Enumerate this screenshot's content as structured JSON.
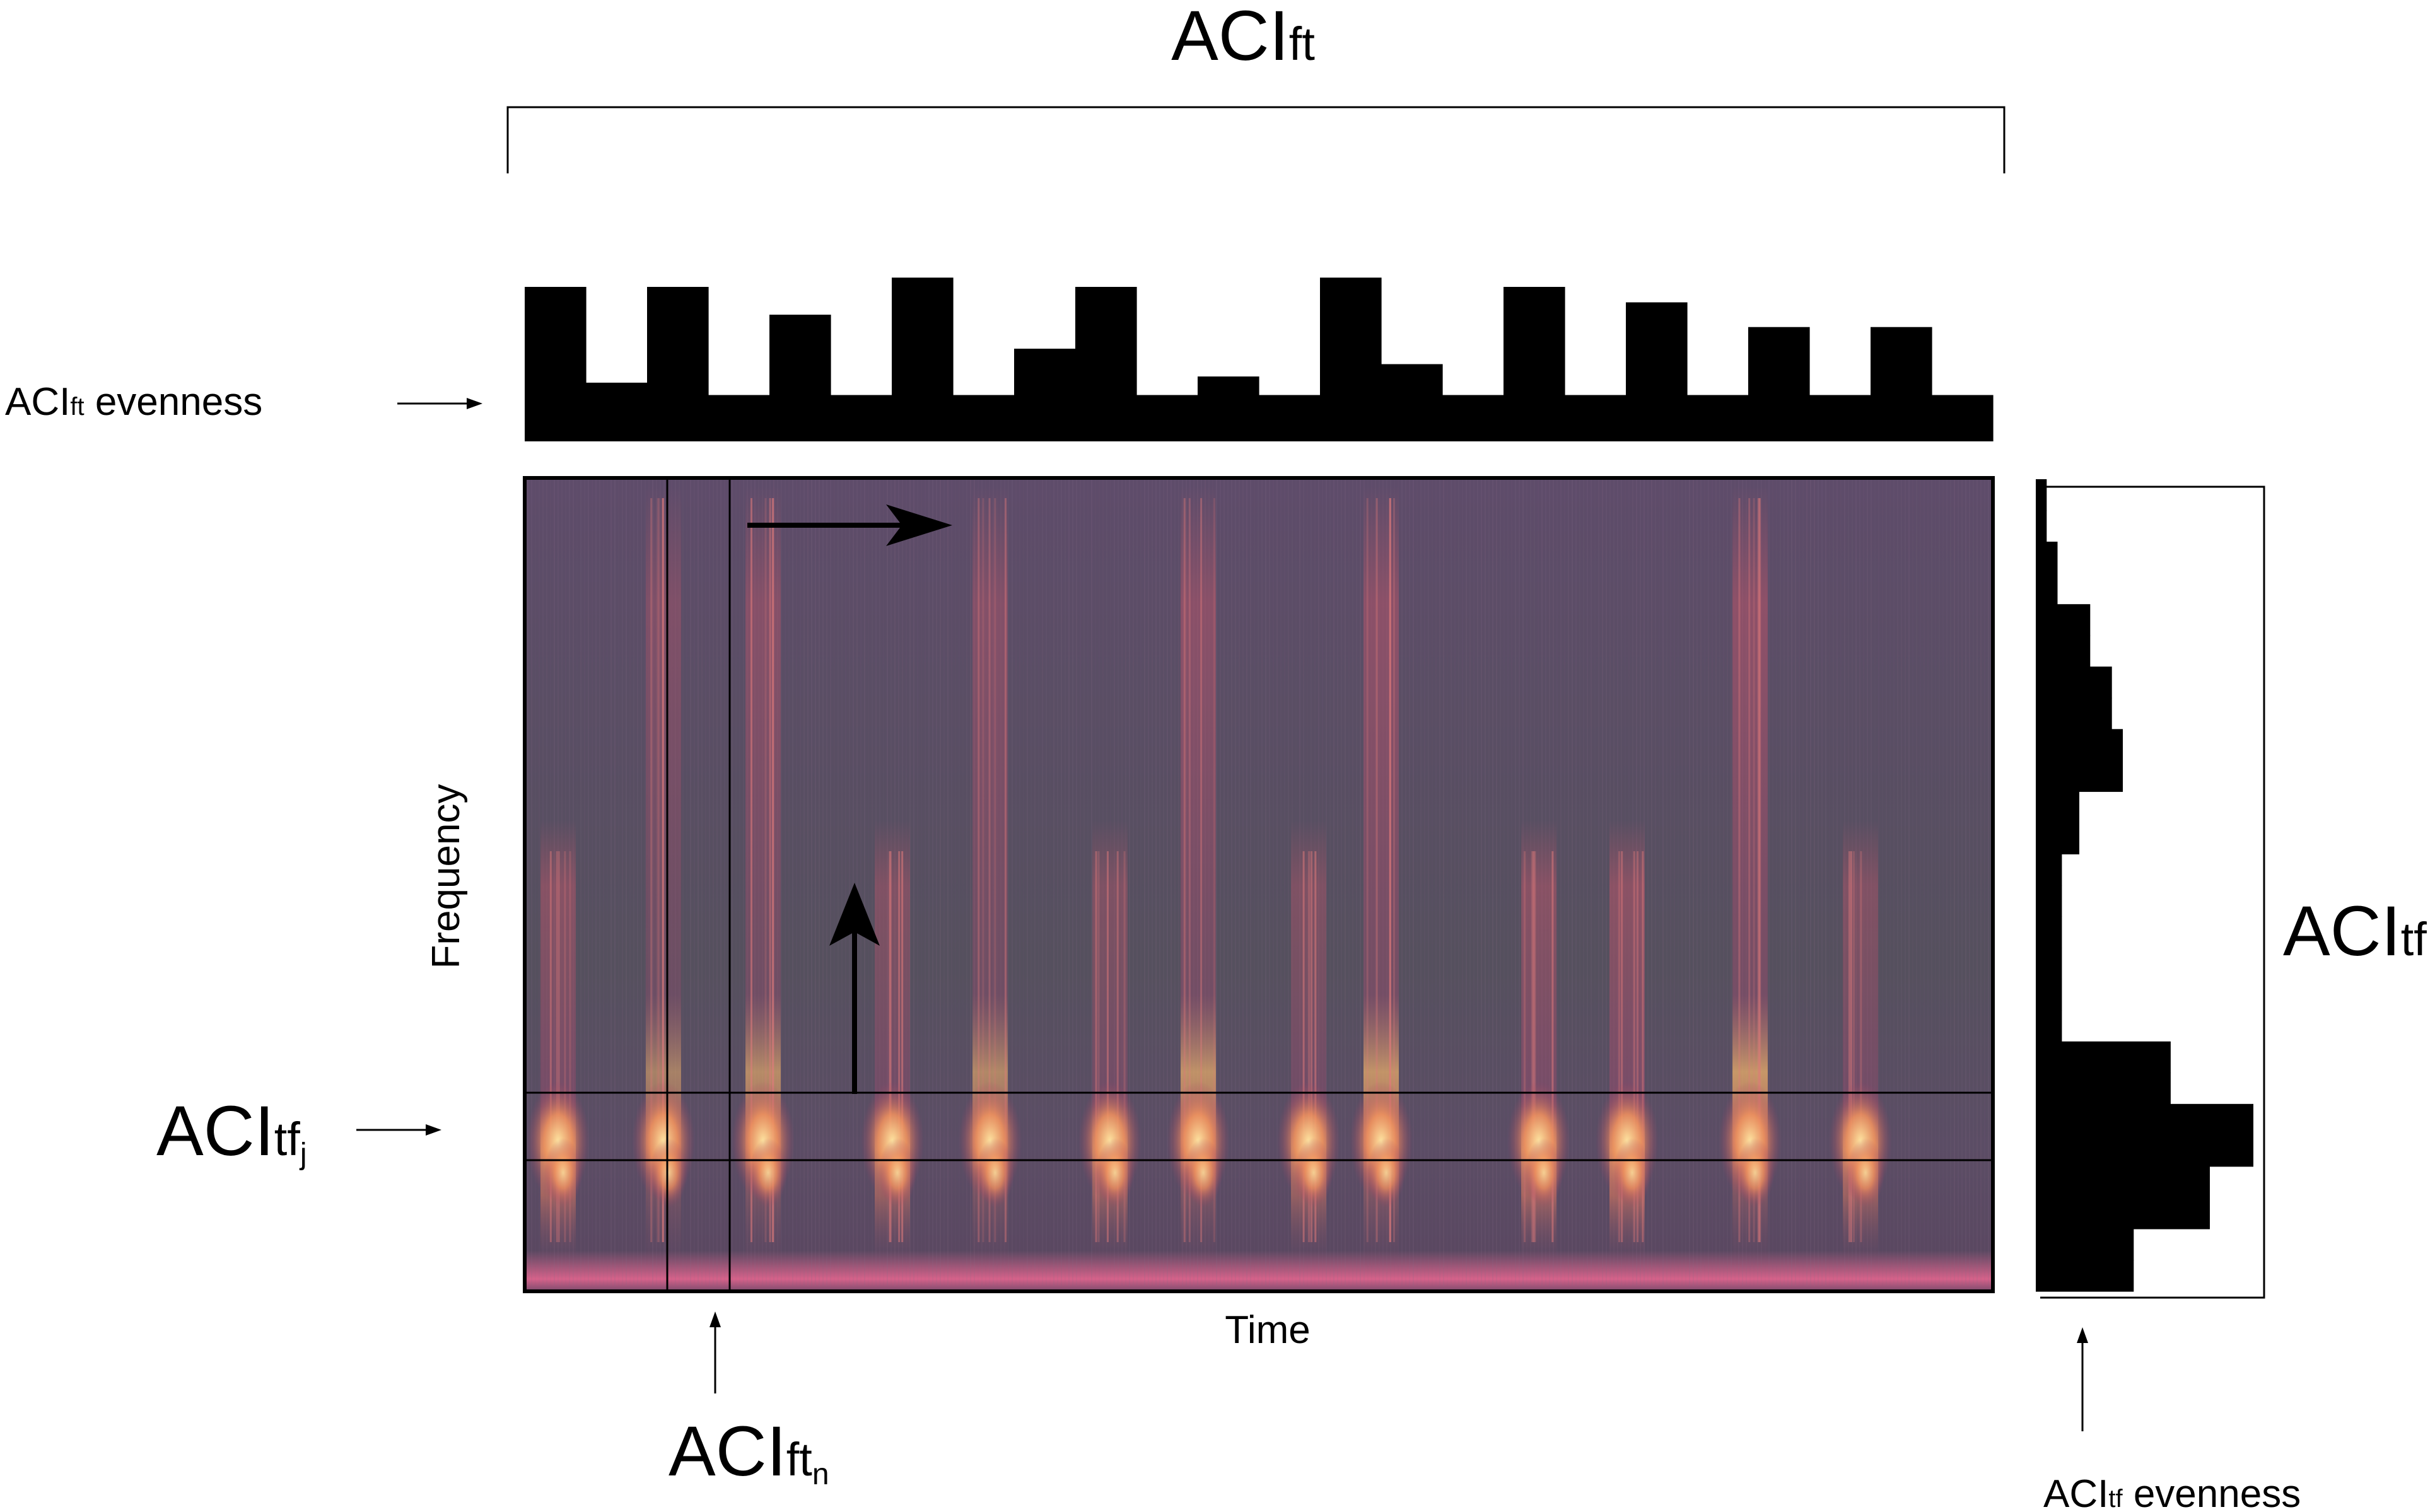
{
  "labels": {
    "acift_top_main": "ACI",
    "acift_top_sub": "ft",
    "acift_evenness_main": "ACI",
    "acift_evenness_sub": "ft",
    "acift_evenness_word": " evenness",
    "acitfj_main": "ACI",
    "acitfj_sub": "tf",
    "acitfj_subsub": "j",
    "aciftn_main": "ACI",
    "aciftn_sub": "ft",
    "aciftn_subsub": "n",
    "acitf_right_main": "ACI",
    "acitf_right_sub": "tf",
    "acitf_evenness_main": "ACI",
    "acitf_evenness_sub": "tf",
    "acitf_evenness_word": " evenness",
    "axis_time": "Time",
    "axis_frequency": "Frequency"
  },
  "colors": {
    "bars": "#000000",
    "spectrogram_base": "#5d4f68",
    "spectrogram_hot": "#f3b46a",
    "spectrogram_warm": "#c8556a"
  },
  "top_bars_relative_height": [
    1.0,
    0.38,
    1.0,
    0.3,
    0.82,
    0.3,
    1.06,
    0.3,
    0.6,
    1.0,
    0.3,
    0.42,
    0.3,
    1.06,
    0.5,
    0.3,
    1.0,
    0.3,
    0.9,
    0.3,
    0.74,
    0.3,
    0.74,
    0.3
  ],
  "right_bars_relative_width": [
    0.05,
    0.05,
    0.1,
    0.1,
    0.25,
    0.25,
    0.35,
    0.35,
    0.4,
    0.4,
    0.2,
    0.2,
    0.12,
    0.12,
    0.12,
    0.12,
    0.12,
    0.12,
    0.62,
    0.62,
    1.0,
    1.0,
    0.8,
    0.8,
    0.45,
    0.45
  ]
}
